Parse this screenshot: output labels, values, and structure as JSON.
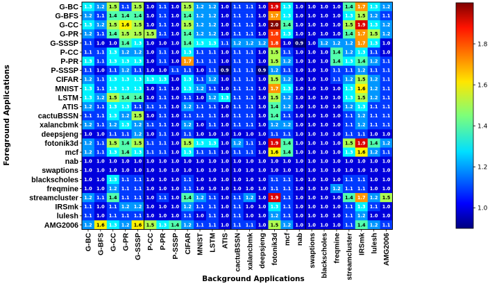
{
  "chart_data": {
    "type": "heatmap",
    "xlabel": "Background Applications",
    "ylabel": "Foreground Applications",
    "x_categories": [
      "G-BC",
      "G-BFS",
      "G-CC",
      "G-PR",
      "G-SSSP",
      "P-CC",
      "P-PR",
      "P-SSSP",
      "CIFAR",
      "MNIST",
      "LSTM",
      "ATIS",
      "cactuBSSN",
      "xalancbmk",
      "deepsjeng",
      "fotonik3d",
      "mcf",
      "nab",
      "swaptions",
      "blackscholes",
      "freqmine",
      "streamcluster",
      "IRSmk",
      "lulesh",
      "AMG2006"
    ],
    "y_categories": [
      "G-BC",
      "G-BFS",
      "G-CC",
      "G-PR",
      "G-SSSP",
      "P-CC",
      "P-PR",
      "P-SSSP",
      "CIFAR",
      "MNIST",
      "LSTM",
      "ATIS",
      "cactuBSSN",
      "xalancbmk",
      "deepsjeng",
      "fotonik3d",
      "mcf",
      "nab",
      "swaptions",
      "blackscholes",
      "freqmine",
      "streamcluster",
      "IRSmk",
      "lulesh",
      "AMG2006"
    ],
    "values": [
      [
        1.3,
        1.2,
        1.5,
        1.1,
        1.5,
        1.0,
        1.1,
        1.0,
        1.5,
        1.2,
        1.2,
        1.0,
        1.1,
        1.1,
        1.0,
        1.9,
        1.3,
        1.0,
        1.0,
        1.0,
        1.0,
        1.4,
        1.7,
        1.3,
        1.2
      ],
      [
        1.2,
        1.1,
        1.4,
        1.4,
        1.4,
        1.0,
        1.1,
        1.0,
        1.4,
        1.2,
        1.2,
        1.0,
        1.1,
        1.1,
        1.0,
        1.7,
        1.3,
        1.0,
        1.0,
        1.0,
        1.0,
        1.3,
        1.5,
        1.2,
        1.1
      ],
      [
        1.3,
        1.2,
        1.5,
        1.6,
        1.5,
        1.0,
        1.1,
        1.0,
        1.5,
        1.2,
        1.2,
        1.0,
        1.1,
        1.1,
        1.0,
        2.0,
        1.4,
        1.0,
        1.0,
        1.0,
        1.0,
        1.5,
        1.9,
        1.3,
        1.2
      ],
      [
        1.2,
        1.1,
        1.4,
        1.5,
        1.5,
        1.5,
        1.1,
        1.0,
        1.4,
        1.2,
        1.2,
        1.0,
        1.1,
        1.1,
        1.0,
        1.8,
        1.3,
        1.0,
        1.0,
        1.0,
        1.0,
        1.4,
        1.7,
        1.5,
        1.2
      ],
      [
        1.1,
        1.0,
        1.0,
        1.4,
        1.3,
        1.0,
        1.0,
        1.0,
        1.4,
        1.3,
        1.3,
        1.1,
        1.2,
        1.2,
        1.2,
        1.8,
        1.0,
        0.9,
        1.0,
        1.2,
        1.2,
        1.2,
        1.7,
        1.3,
        1.0
      ],
      [
        1.1,
        1.1,
        1.3,
        1.2,
        1.2,
        1.0,
        1.1,
        1.0,
        1.3,
        1.1,
        1.1,
        1.0,
        1.1,
        1.1,
        1.0,
        1.5,
        1.1,
        1.0,
        1.0,
        1.0,
        1.4,
        1.2,
        1.3,
        1.1,
        1.0
      ],
      [
        1.3,
        1.1,
        1.3,
        1.3,
        1.3,
        1.0,
        1.1,
        1.0,
        1.7,
        1.1,
        1.1,
        1.0,
        1.1,
        1.1,
        1.0,
        1.5,
        1.2,
        1.0,
        1.0,
        1.0,
        1.4,
        1.3,
        1.4,
        1.2,
        1.1
      ],
      [
        1.1,
        1.0,
        1.1,
        1.2,
        1.1,
        1.0,
        1.0,
        1.1,
        1.1,
        1.0,
        1.1,
        0.9,
        1.1,
        1.1,
        0.9,
        1.2,
        1.1,
        1.0,
        1.0,
        1.0,
        1.1,
        1.1,
        1.2,
        1.1,
        1.1
      ],
      [
        1.2,
        1.1,
        1.3,
        1.3,
        1.3,
        1.3,
        1.3,
        1.0,
        1.3,
        1.1,
        1.2,
        1.0,
        1.1,
        1.1,
        1.0,
        1.5,
        1.2,
        1.0,
        1.0,
        1.0,
        1.1,
        1.2,
        1.5,
        1.2,
        1.1
      ],
      [
        1.3,
        1.1,
        1.3,
        1.3,
        1.3,
        1.0,
        1.1,
        1.0,
        1.3,
        1.2,
        1.1,
        1.0,
        1.1,
        1.1,
        1.0,
        1.7,
        1.3,
        1.0,
        1.0,
        1.0,
        1.0,
        1.3,
        1.6,
        1.2,
        1.1
      ],
      [
        1.3,
        1.2,
        1.5,
        1.4,
        1.4,
        1.0,
        1.1,
        1.0,
        1.1,
        1.0,
        1.2,
        1.3,
        1.1,
        1.1,
        1.0,
        1.5,
        1.2,
        1.0,
        1.0,
        1.0,
        1.0,
        1.3,
        1.5,
        1.2,
        1.1
      ],
      [
        1.2,
        1.1,
        1.3,
        1.3,
        1.1,
        1.1,
        1.1,
        1.0,
        1.2,
        1.1,
        1.1,
        1.0,
        1.1,
        1.1,
        1.0,
        1.4,
        1.2,
        1.0,
        1.0,
        1.0,
        1.0,
        1.2,
        1.3,
        1.1,
        1.1
      ],
      [
        1.1,
        1.1,
        1.3,
        1.2,
        1.5,
        1.0,
        1.1,
        1.0,
        1.1,
        1.1,
        1.1,
        1.0,
        1.1,
        1.1,
        1.0,
        1.4,
        1.1,
        1.0,
        1.0,
        1.0,
        1.0,
        1.1,
        1.2,
        1.1,
        1.1
      ],
      [
        1.2,
        1.1,
        1.2,
        1.3,
        1.2,
        1.1,
        1.1,
        1.0,
        1.2,
        1.0,
        1.1,
        1.0,
        1.1,
        1.1,
        1.0,
        1.2,
        1.2,
        1.0,
        1.0,
        1.0,
        1.0,
        1.1,
        1.2,
        1.1,
        1.1
      ],
      [
        1.0,
        1.0,
        1.1,
        1.1,
        1.2,
        1.0,
        1.1,
        1.0,
        1.1,
        1.0,
        1.0,
        1.0,
        1.0,
        1.0,
        1.0,
        1.1,
        1.1,
        1.0,
        1.0,
        1.0,
        1.0,
        1.1,
        1.1,
        1.0,
        1.0
      ],
      [
        1.2,
        1.1,
        1.5,
        1.4,
        1.5,
        1.1,
        1.1,
        1.0,
        1.5,
        1.3,
        1.3,
        1.0,
        1.2,
        1.1,
        1.0,
        1.9,
        1.4,
        1.0,
        1.0,
        1.0,
        1.0,
        1.5,
        1.9,
        1.4,
        1.2
      ],
      [
        1.2,
        1.1,
        1.3,
        1.4,
        1.3,
        1.1,
        1.1,
        1.0,
        1.3,
        1.1,
        1.1,
        1.0,
        1.1,
        1.1,
        1.0,
        1.6,
        1.4,
        1.0,
        1.0,
        1.0,
        1.0,
        1.3,
        1.6,
        1.2,
        1.1
      ],
      [
        1.0,
        1.0,
        1.0,
        1.0,
        1.0,
        1.0,
        1.0,
        1.0,
        1.0,
        1.0,
        1.0,
        1.0,
        1.0,
        1.0,
        1.0,
        1.0,
        1.0,
        1.0,
        1.0,
        1.0,
        1.0,
        1.0,
        1.0,
        1.0,
        1.0
      ],
      [
        1.0,
        1.0,
        1.0,
        1.0,
        1.0,
        1.0,
        1.0,
        1.0,
        1.0,
        1.0,
        1.0,
        1.0,
        1.0,
        1.0,
        1.0,
        1.0,
        1.0,
        1.0,
        1.0,
        1.0,
        1.0,
        1.0,
        1.0,
        1.0,
        1.0
      ],
      [
        1.0,
        1.0,
        1.3,
        1.1,
        1.1,
        1.0,
        1.0,
        1.0,
        1.1,
        1.0,
        1.0,
        1.0,
        1.0,
        1.0,
        1.0,
        1.1,
        1.1,
        1.0,
        1.0,
        1.0,
        1.0,
        1.1,
        1.1,
        1.0,
        1.0
      ],
      [
        1.0,
        1.0,
        1.2,
        1.1,
        1.1,
        1.0,
        1.0,
        1.0,
        1.1,
        1.0,
        1.0,
        1.0,
        1.0,
        1.0,
        1.0,
        1.1,
        1.1,
        1.0,
        1.0,
        1.0,
        1.2,
        1.1,
        1.1,
        1.0,
        1.0
      ],
      [
        1.2,
        1.1,
        1.4,
        1.1,
        1.1,
        1.0,
        1.1,
        1.0,
        1.4,
        1.2,
        1.1,
        1.0,
        1.1,
        1.2,
        1.0,
        1.9,
        1.1,
        1.0,
        1.0,
        1.0,
        1.0,
        1.4,
        1.7,
        1.2,
        1.5
      ],
      [
        1.1,
        1.0,
        1.1,
        1.2,
        1.2,
        1.0,
        1.0,
        1.0,
        1.2,
        1.1,
        1.1,
        1.0,
        1.1,
        1.0,
        1.0,
        1.3,
        1.1,
        1.0,
        1.0,
        1.0,
        1.0,
        1.1,
        1.3,
        1.1,
        1.0
      ],
      [
        1.1,
        1.0,
        1.1,
        1.1,
        1.1,
        1.0,
        1.0,
        1.0,
        1.1,
        1.0,
        1.1,
        1.0,
        1.1,
        1.0,
        1.0,
        1.2,
        1.1,
        1.0,
        1.0,
        1.0,
        1.0,
        1.1,
        1.2,
        1.0,
        1.0
      ],
      [
        1.2,
        1.6,
        1.3,
        1.2,
        1.6,
        1.5,
        1.3,
        1.4,
        1.2,
        1.1,
        1.1,
        1.0,
        1.1,
        1.1,
        1.0,
        1.5,
        1.2,
        1.0,
        1.0,
        1.0,
        1.0,
        1.1,
        1.4,
        1.2,
        1.1
      ]
    ],
    "value_range": [
      0.9,
      2.0
    ],
    "colormap": "jet",
    "colorbar_ticks": [
      "1.0",
      "1.2",
      "1.4",
      "1.6",
      "1.8"
    ],
    "colorbar_tick_values": [
      1.0,
      1.2,
      1.4,
      1.6,
      1.8
    ],
    "grid_lines_after_columns": [
      "G-SSSP",
      "ATIS",
      "nab"
    ]
  }
}
